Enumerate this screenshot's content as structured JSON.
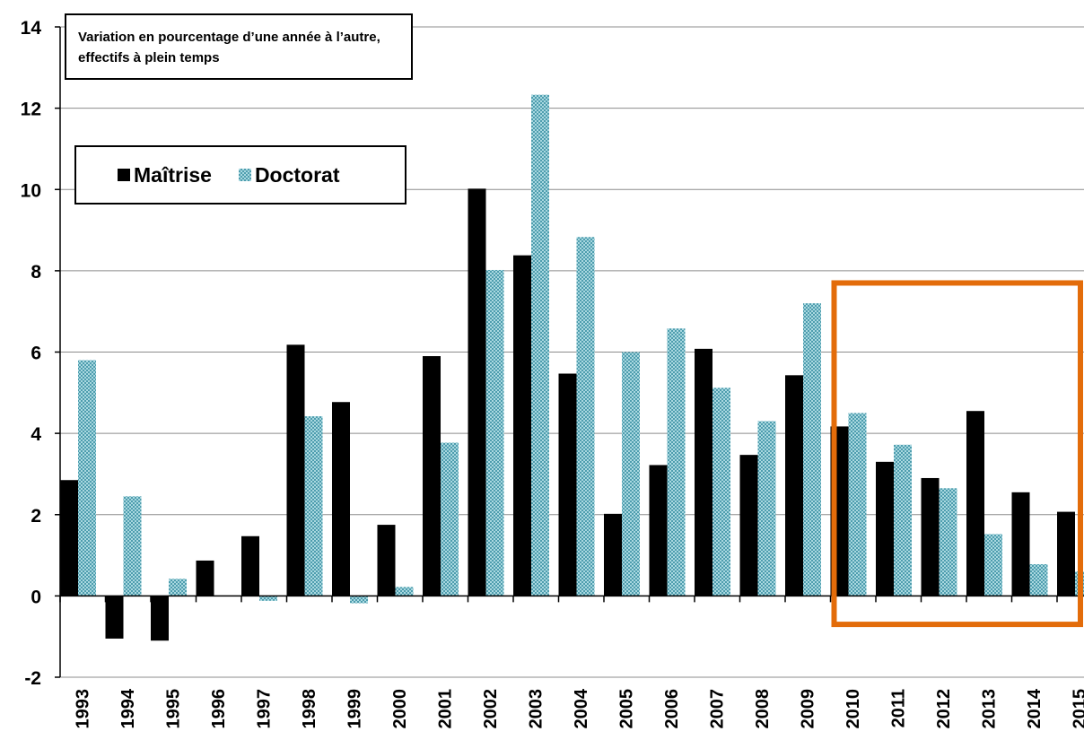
{
  "chart_data": {
    "type": "bar",
    "title": "Variation en pourcentage d’une année à l’autre, effectifs à plein temps",
    "xlabel": "",
    "ylabel": "",
    "ylim": [
      -2,
      14
    ],
    "yticks": [
      -2,
      0,
      2,
      4,
      6,
      8,
      10,
      12,
      14
    ],
    "grid": "horizontal",
    "legend_position": "top-left",
    "highlight_box": {
      "from_category": "2010",
      "to_category": "2015",
      "color": "#E36C0A"
    },
    "categories": [
      "1993",
      "1994",
      "1995",
      "1996",
      "1997",
      "1998",
      "1999",
      "2000",
      "2001",
      "2002",
      "2003",
      "2004",
      "2005",
      "2006",
      "2007",
      "2008",
      "2009",
      "2010",
      "2011",
      "2012",
      "2013",
      "2014",
      "2015"
    ],
    "series": [
      {
        "name": "Maîtrise",
        "color": "#000000",
        "pattern": "solid",
        "values": [
          2.85,
          -1.05,
          -1.1,
          0.87,
          1.47,
          6.18,
          4.77,
          1.75,
          5.9,
          10.02,
          8.38,
          5.47,
          2.02,
          3.22,
          6.08,
          3.47,
          5.43,
          4.17,
          3.3,
          2.9,
          4.55,
          2.55,
          2.07
        ]
      },
      {
        "name": "Doctorat",
        "color": "#7FBFCB",
        "pattern": "checker",
        "values": [
          5.8,
          2.45,
          0.42,
          0.0,
          -0.12,
          4.42,
          -0.18,
          0.22,
          3.77,
          8.02,
          12.33,
          8.83,
          6.0,
          6.58,
          5.12,
          4.3,
          7.2,
          4.5,
          3.72,
          2.65,
          1.52,
          0.78,
          0.6
        ]
      }
    ]
  }
}
